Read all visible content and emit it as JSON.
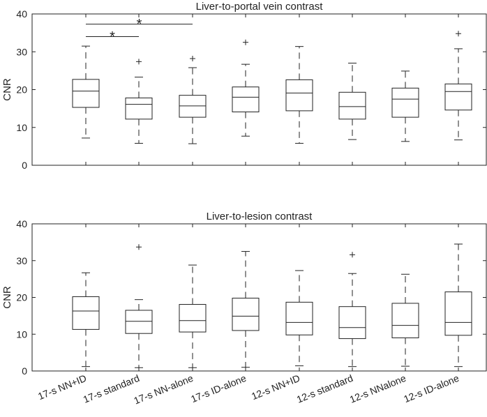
{
  "chart_data": [
    {
      "type": "boxplot",
      "title": "Liver-to-portal vein contrast",
      "ylabel": "CNR",
      "ylim": [
        0,
        40
      ],
      "yticks": [
        0,
        10,
        20,
        30,
        40
      ],
      "categories": [
        "17-s NN+ID",
        "17-s standard",
        "17-s NN-alone",
        "17-s ID-alone",
        "12-s NN+ID",
        "12-s standard",
        "12-s NNalone",
        "12-s ID-alone"
      ],
      "boxes": [
        {
          "whisker_low": 7.2,
          "q1": 15.3,
          "median": 19.6,
          "q3": 22.7,
          "whisker_high": 31.5,
          "outliers": []
        },
        {
          "whisker_low": 5.8,
          "q1": 12.2,
          "median": 16.1,
          "q3": 17.8,
          "whisker_high": 23.3,
          "outliers": [
            27.4
          ]
        },
        {
          "whisker_low": 5.7,
          "q1": 12.7,
          "median": 15.7,
          "q3": 18.5,
          "whisker_high": 25.8,
          "outliers": [
            28.2
          ]
        },
        {
          "whisker_low": 7.7,
          "q1": 14.1,
          "median": 18.0,
          "q3": 20.7,
          "whisker_high": 26.7,
          "outliers": [
            32.5
          ]
        },
        {
          "whisker_low": 5.8,
          "q1": 14.4,
          "median": 19.1,
          "q3": 22.6,
          "whisker_high": 31.4,
          "outliers": []
        },
        {
          "whisker_low": 6.8,
          "q1": 12.2,
          "median": 15.5,
          "q3": 19.3,
          "whisker_high": 27.0,
          "outliers": []
        },
        {
          "whisker_low": 6.3,
          "q1": 12.7,
          "median": 17.5,
          "q3": 20.4,
          "whisker_high": 24.9,
          "outliers": []
        },
        {
          "whisker_low": 6.7,
          "q1": 14.6,
          "median": 19.5,
          "q3": 21.5,
          "whisker_high": 30.8,
          "outliers": [
            34.8
          ]
        }
      ],
      "significance": [
        {
          "from": 0,
          "to": 1,
          "value": 34.0,
          "label": "*"
        },
        {
          "from": 0,
          "to": 2,
          "value": 37.3,
          "label": "*"
        }
      ]
    },
    {
      "type": "boxplot",
      "title": "Liver-to-lesion contrast",
      "ylabel": "CNR",
      "ylim": [
        0,
        40
      ],
      "yticks": [
        0,
        10,
        20,
        30,
        40
      ],
      "categories": [
        "17-s NN+ID",
        "17-s standard",
        "17-s NN-alone",
        "17-s ID-alone",
        "12-s NN+ID",
        "12-s standard",
        "12-s NNalone",
        "12-s ID-alone"
      ],
      "boxes": [
        {
          "whisker_low": 1.2,
          "q1": 11.3,
          "median": 16.3,
          "q3": 20.2,
          "whisker_high": 26.7,
          "outliers": []
        },
        {
          "whisker_low": 0.9,
          "q1": 10.2,
          "median": 13.5,
          "q3": 16.5,
          "whisker_high": 19.4,
          "outliers": [
            33.7
          ]
        },
        {
          "whisker_low": 0.9,
          "q1": 10.6,
          "median": 13.7,
          "q3": 18.1,
          "whisker_high": 28.8,
          "outliers": []
        },
        {
          "whisker_low": 1.0,
          "q1": 11.0,
          "median": 14.9,
          "q3": 19.8,
          "whisker_high": 32.5,
          "outliers": []
        },
        {
          "whisker_low": 1.4,
          "q1": 9.8,
          "median": 13.2,
          "q3": 18.7,
          "whisker_high": 27.3,
          "outliers": []
        },
        {
          "whisker_low": 1.2,
          "q1": 8.8,
          "median": 11.8,
          "q3": 17.5,
          "whisker_high": 26.5,
          "outliers": [
            31.6
          ]
        },
        {
          "whisker_low": 1.3,
          "q1": 9.0,
          "median": 12.4,
          "q3": 18.4,
          "whisker_high": 26.3,
          "outliers": []
        },
        {
          "whisker_low": 1.2,
          "q1": 9.7,
          "median": 13.2,
          "q3": 21.5,
          "whisker_high": 34.5,
          "outliers": []
        }
      ],
      "significance": []
    }
  ]
}
